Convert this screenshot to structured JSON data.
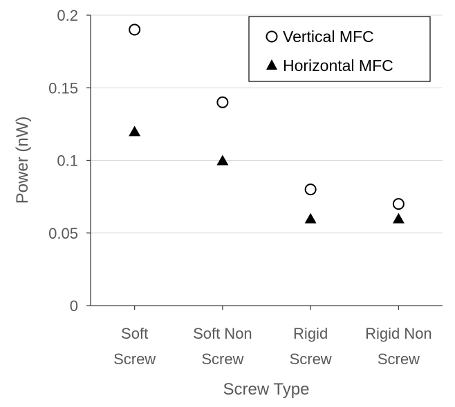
{
  "colors": {
    "axis": "#404040",
    "grid": "#d9d9d9",
    "text": "#595959",
    "marker": "#000000",
    "legend_border": "#000000"
  },
  "chart_data": {
    "type": "scatter",
    "title": "",
    "xlabel": "Screw Type",
    "ylabel": "Power (nW)",
    "ylim": [
      0,
      0.2
    ],
    "yticks": [
      0,
      0.05,
      0.1,
      0.15,
      0.2
    ],
    "ytick_labels": [
      "0",
      "0.05",
      "0.1",
      "0.15",
      "0.2"
    ],
    "categories": [
      [
        "Soft",
        "Screw"
      ],
      [
        "Soft Non",
        "Screw"
      ],
      [
        "Rigid",
        "Screw"
      ],
      [
        "Rigid Non",
        "Screw"
      ]
    ],
    "grid": "horizontal",
    "legend_position": "top-right",
    "series": [
      {
        "name": "Vertical MFC",
        "marker": "open-circle",
        "values": [
          0.19,
          0.14,
          0.08,
          0.07
        ]
      },
      {
        "name": "Horizontal MFC",
        "marker": "filled-triangle",
        "values": [
          0.12,
          0.1,
          0.06,
          0.06
        ]
      }
    ]
  }
}
